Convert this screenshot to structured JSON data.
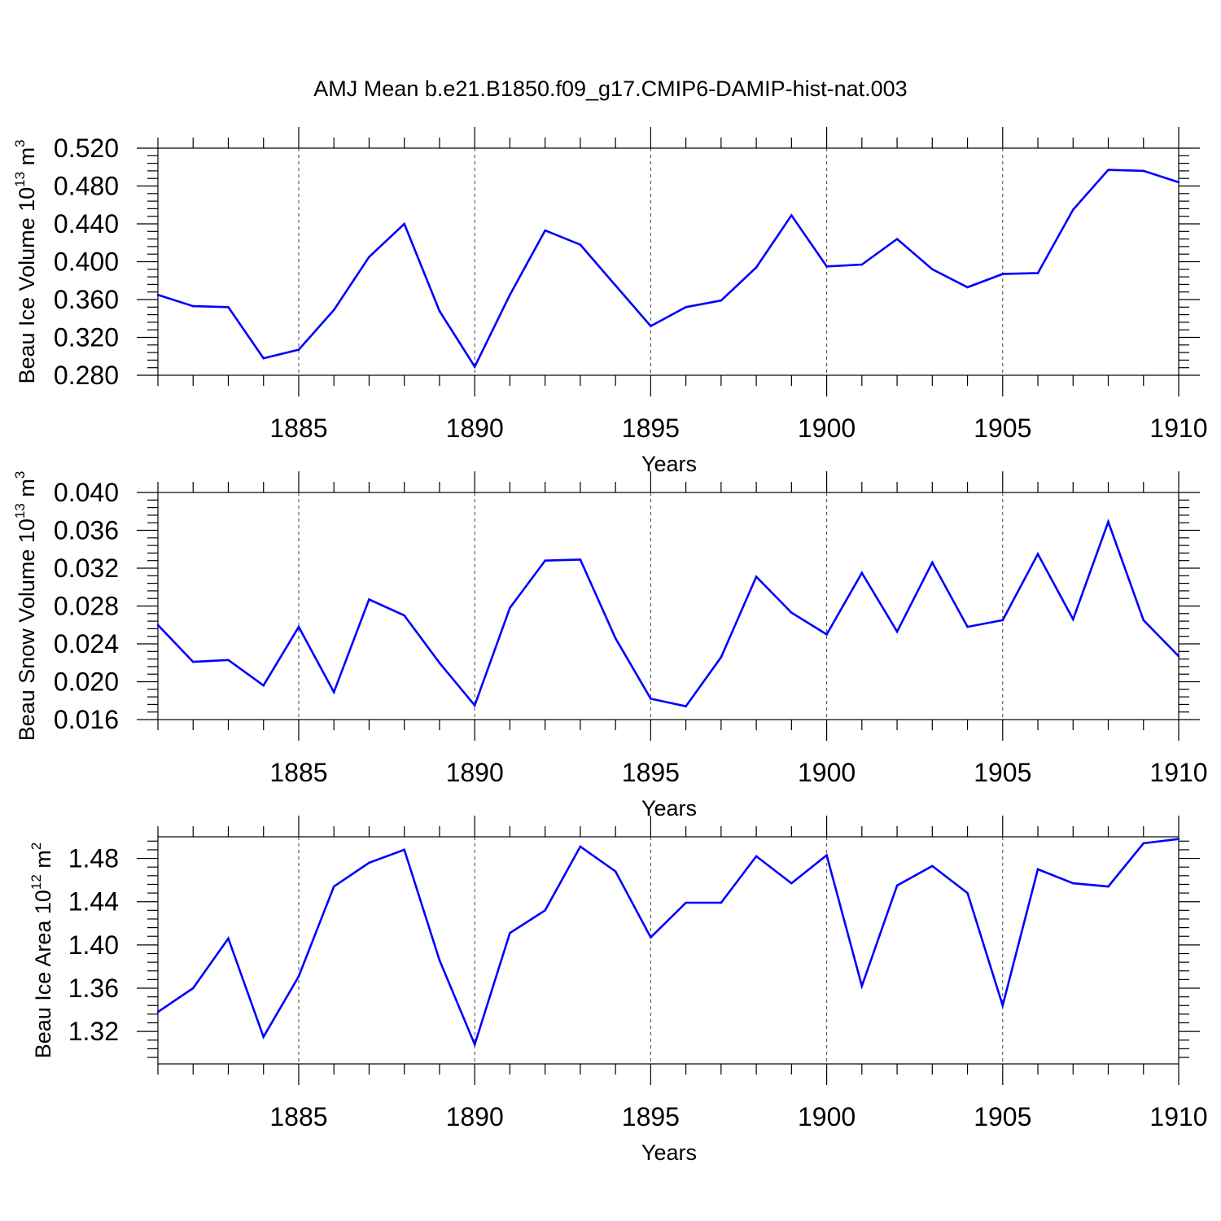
{
  "title": "AMJ Mean b.e21.B1850.f09_g17.CMIP6-DAMIP-hist-nat.003",
  "chart_data": [
    {
      "type": "line",
      "title": "AMJ Mean b.e21.B1850.f09_g17.CMIP6-DAMIP-hist-nat.003",
      "ylabel_main": "Beau Ice Volume 10",
      "ylabel_exp": "13",
      "ylabel_unit": " m",
      "ylabel_unit_exp": "3",
      "xlabel": "Years",
      "xlim": [
        1881,
        1910
      ],
      "ylim": [
        0.28,
        0.52
      ],
      "yticks": [
        "0.280",
        "0.320",
        "0.360",
        "0.400",
        "0.440",
        "0.480",
        "0.520"
      ],
      "ytick_values": [
        0.28,
        0.32,
        0.36,
        0.4,
        0.44,
        0.48,
        0.52
      ],
      "xticks": [
        "1885",
        "1890",
        "1895",
        "1900",
        "1905",
        "1910"
      ],
      "xtick_values": [
        1885,
        1890,
        1895,
        1900,
        1905,
        1910
      ],
      "grid": "vertical dashed at major x ticks",
      "series_color": "#0000ff",
      "x": [
        1881,
        1882,
        1883,
        1884,
        1885,
        1886,
        1887,
        1888,
        1889,
        1890,
        1891,
        1892,
        1893,
        1894,
        1895,
        1896,
        1897,
        1898,
        1899,
        1900,
        1901,
        1902,
        1903,
        1904,
        1905,
        1906,
        1907,
        1908,
        1909,
        1910
      ],
      "y": [
        0.365,
        0.353,
        0.352,
        0.298,
        0.307,
        0.349,
        0.405,
        0.44,
        0.348,
        0.289,
        0.365,
        0.433,
        0.418,
        0.375,
        0.332,
        0.352,
        0.359,
        0.394,
        0.449,
        0.395,
        0.397,
        0.424,
        0.392,
        0.373,
        0.387,
        0.388,
        0.455,
        0.497,
        0.496,
        0.484
      ]
    },
    {
      "type": "line",
      "ylabel_main": "Beau Snow Volume 10",
      "ylabel_exp": "13",
      "ylabel_unit": " m",
      "ylabel_unit_exp": "3",
      "xlabel": "Years",
      "xlim": [
        1881,
        1910
      ],
      "ylim": [
        0.016,
        0.04
      ],
      "yticks": [
        "0.016",
        "0.020",
        "0.024",
        "0.028",
        "0.032",
        "0.036",
        "0.040"
      ],
      "ytick_values": [
        0.016,
        0.02,
        0.024,
        0.028,
        0.032,
        0.036,
        0.04
      ],
      "xticks": [
        "1885",
        "1890",
        "1895",
        "1900",
        "1905",
        "1910"
      ],
      "xtick_values": [
        1885,
        1890,
        1895,
        1900,
        1905,
        1910
      ],
      "grid": "vertical dashed at major x ticks",
      "series_color": "#0000ff",
      "x": [
        1881,
        1882,
        1883,
        1884,
        1885,
        1886,
        1887,
        1888,
        1889,
        1890,
        1891,
        1892,
        1893,
        1894,
        1895,
        1896,
        1897,
        1898,
        1899,
        1900,
        1901,
        1902,
        1903,
        1904,
        1905,
        1906,
        1907,
        1908,
        1909,
        1910
      ],
      "y": [
        0.026,
        0.0221,
        0.0223,
        0.0196,
        0.0258,
        0.0189,
        0.0287,
        0.027,
        0.022,
        0.0175,
        0.0278,
        0.0328,
        0.0329,
        0.0246,
        0.0182,
        0.0174,
        0.0226,
        0.0311,
        0.0273,
        0.025,
        0.0315,
        0.0253,
        0.0326,
        0.0258,
        0.0265,
        0.0335,
        0.0266,
        0.0369,
        0.0265,
        0.0227
      ]
    },
    {
      "type": "line",
      "ylabel_main": "Beau Ice Area 10",
      "ylabel_exp": "12",
      "ylabel_unit": " m",
      "ylabel_unit_exp": "2",
      "xlabel": "Years",
      "xlim": [
        1881,
        1910
      ],
      "ylim": [
        1.29,
        1.5
      ],
      "yticks": [
        "1.32",
        "1.36",
        "1.40",
        "1.44",
        "1.48"
      ],
      "ytick_values": [
        1.32,
        1.36,
        1.4,
        1.44,
        1.48
      ],
      "xticks": [
        "1885",
        "1890",
        "1895",
        "1900",
        "1905",
        "1910"
      ],
      "xtick_values": [
        1885,
        1890,
        1895,
        1900,
        1905,
        1910
      ],
      "grid": "vertical dashed at major x ticks",
      "series_color": "#0000ff",
      "x": [
        1881,
        1882,
        1883,
        1884,
        1885,
        1886,
        1887,
        1888,
        1889,
        1890,
        1891,
        1892,
        1893,
        1894,
        1895,
        1896,
        1897,
        1898,
        1899,
        1900,
        1901,
        1902,
        1903,
        1904,
        1905,
        1906,
        1907,
        1908,
        1909,
        1910
      ],
      "y": [
        1.338,
        1.36,
        1.406,
        1.315,
        1.371,
        1.454,
        1.476,
        1.488,
        1.386,
        1.308,
        1.411,
        1.432,
        1.491,
        1.468,
        1.407,
        1.439,
        1.439,
        1.482,
        1.457,
        1.483,
        1.362,
        1.455,
        1.473,
        1.448,
        1.344,
        1.47,
        1.457,
        1.454,
        1.494,
        1.498
      ]
    }
  ]
}
